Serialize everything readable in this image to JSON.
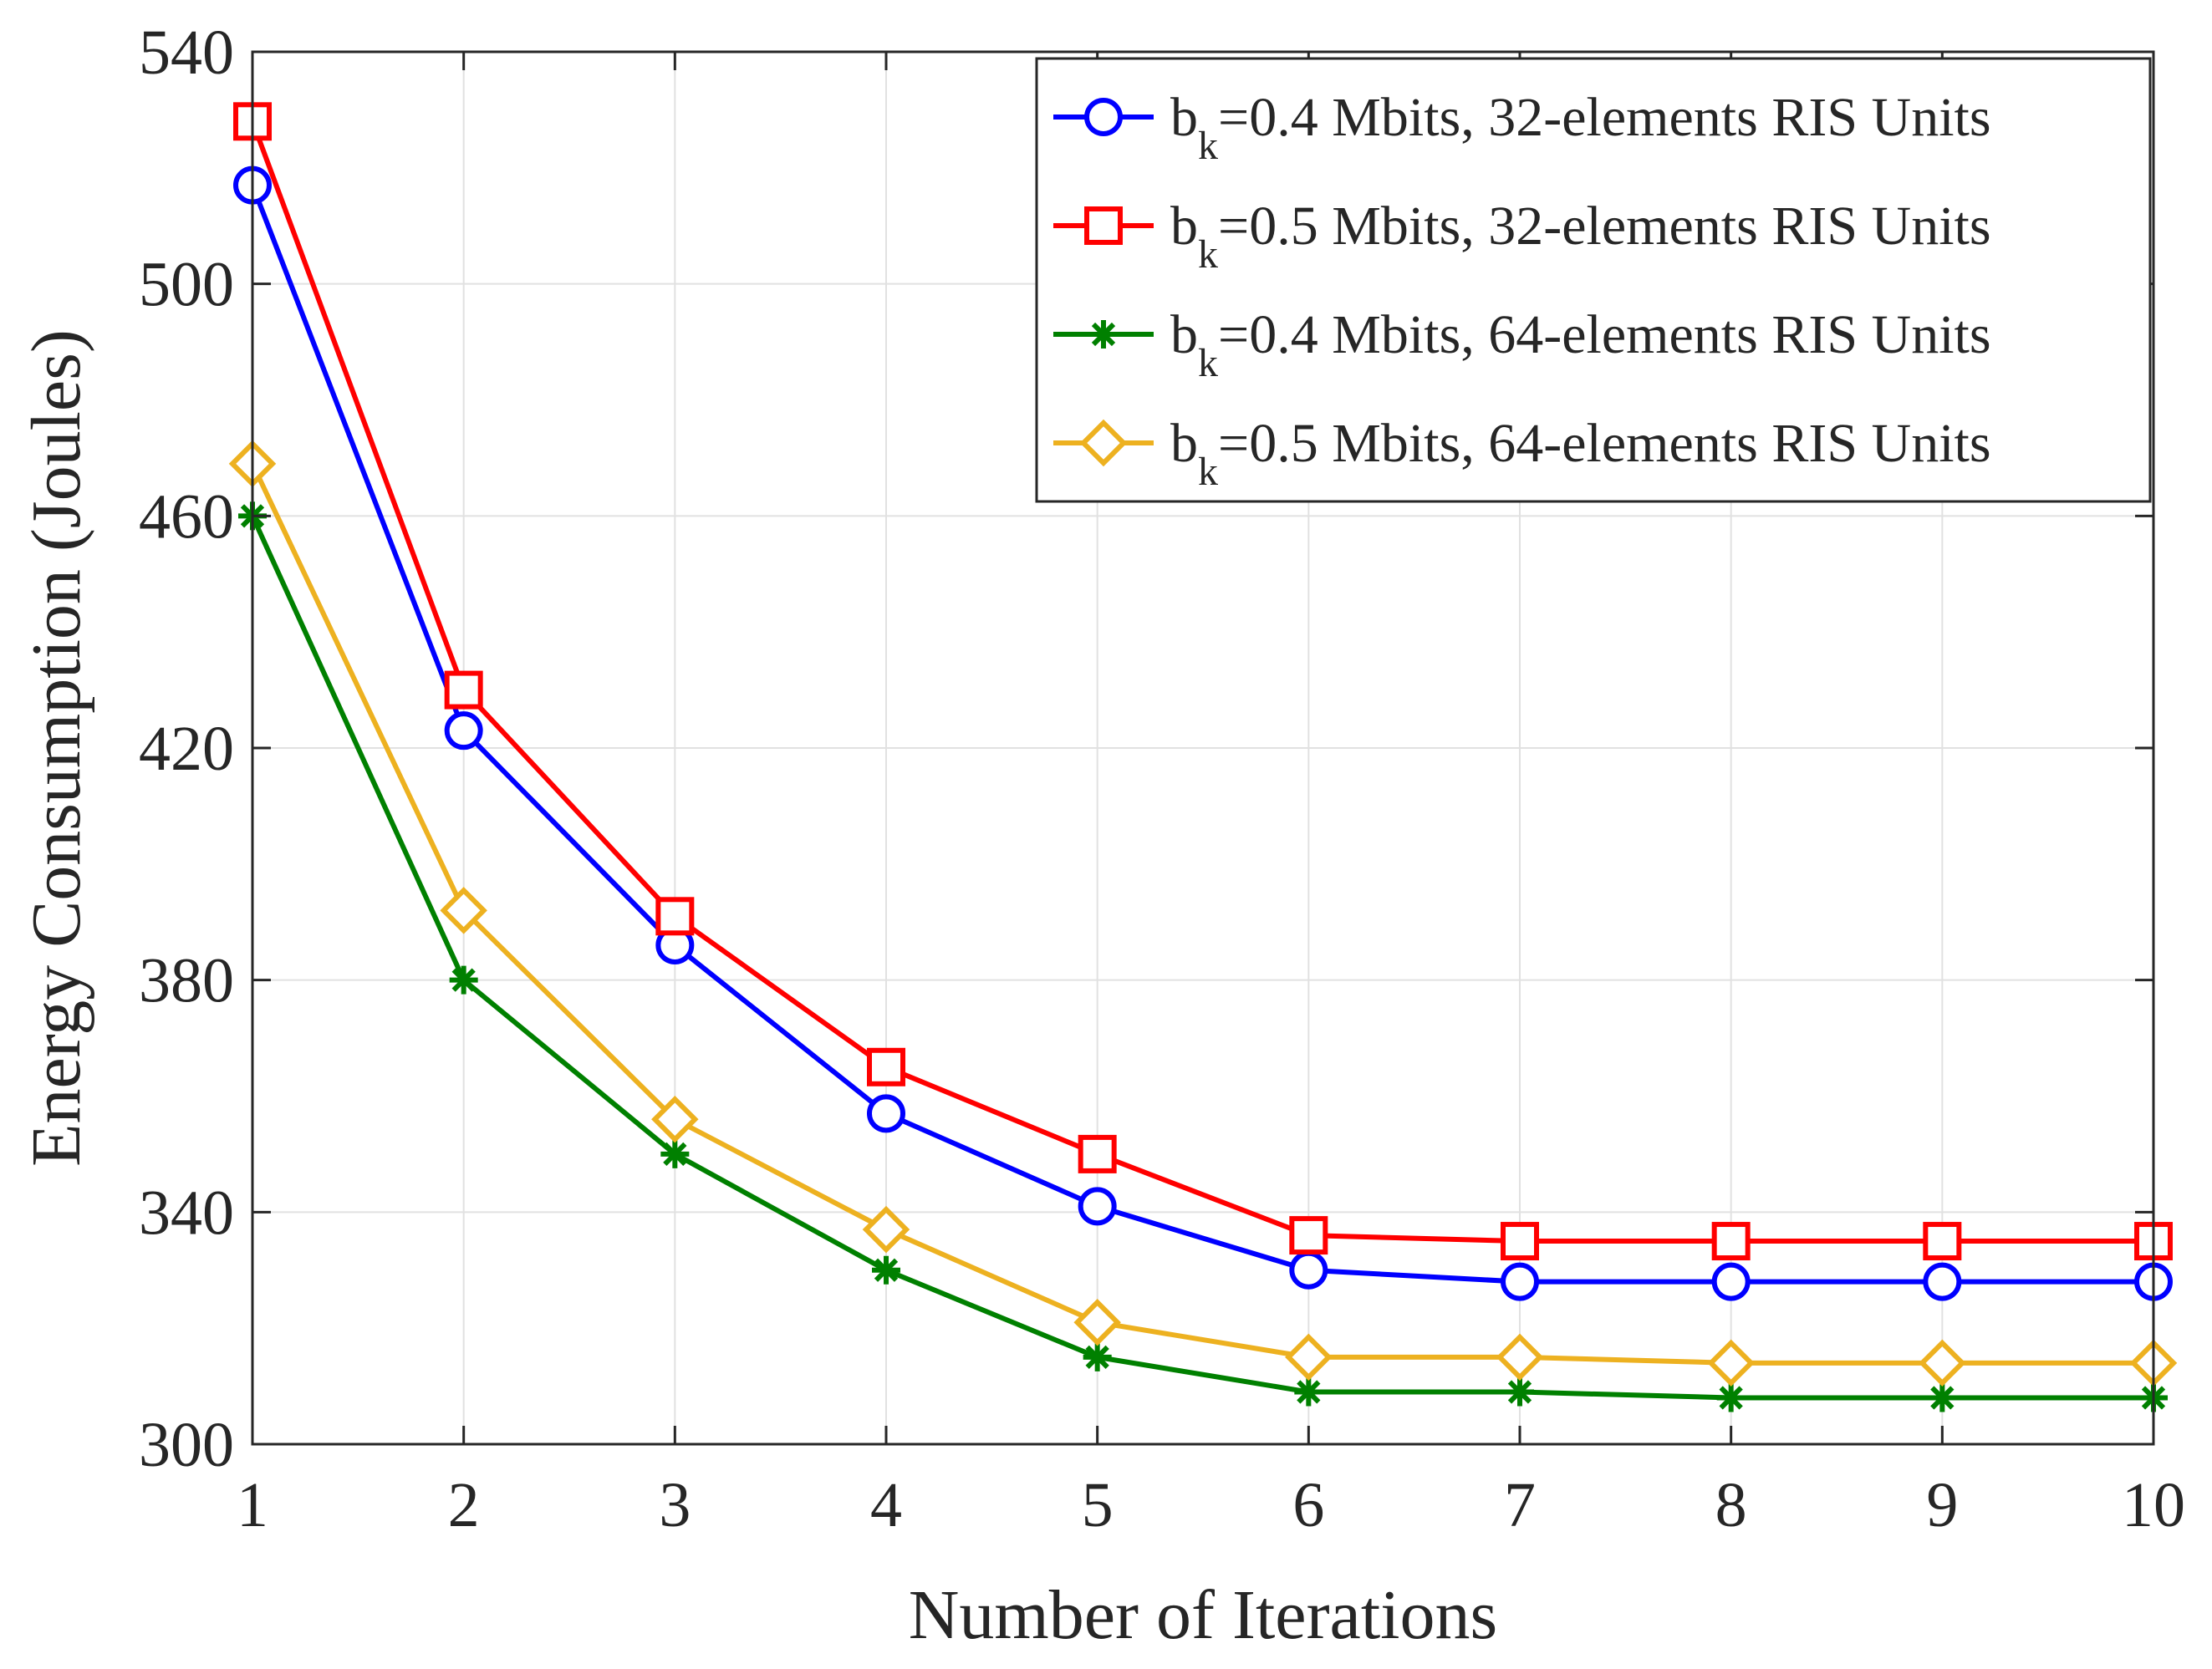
{
  "chart_data": {
    "type": "line",
    "title": "",
    "xlabel": "Number of Iterations",
    "ylabel": "Energy Consumption (Joules)",
    "xlim": [
      1,
      10
    ],
    "ylim": [
      300,
      540
    ],
    "xticks": [
      1,
      2,
      3,
      4,
      5,
      6,
      7,
      8,
      9,
      10
    ],
    "yticks": [
      300,
      340,
      380,
      420,
      460,
      500,
      540
    ],
    "grid": true,
    "legend_position": "top-right",
    "x": [
      1,
      2,
      3,
      4,
      5,
      6,
      7,
      8,
      9,
      10
    ],
    "series": [
      {
        "name": "b_k=0.4 Mbits, 32-elements RIS Units",
        "legend_prefix": "b",
        "legend_sub": "k",
        "legend_suffix": "=0.4 Mbits, 32-elements RIS Units",
        "color": "#0000ff",
        "marker": "circle",
        "values": [
          517,
          423,
          386,
          357,
          341,
          330,
          328,
          328,
          328,
          328
        ]
      },
      {
        "name": "b_k=0.5 Mbits, 32-elements RIS Units",
        "legend_prefix": "b",
        "legend_sub": "k",
        "legend_suffix": "=0.5 Mbits, 32-elements RIS Units",
        "color": "#ff0000",
        "marker": "square",
        "values": [
          528,
          430,
          391,
          365,
          350,
          336,
          335,
          335,
          335,
          335
        ]
      },
      {
        "name": "b_k=0.4 Mbits, 64-elements RIS Units",
        "legend_prefix": "b",
        "legend_sub": "k",
        "legend_suffix": "=0.4 Mbits, 64-elements RIS Units",
        "color": "#008000",
        "marker": "asterisk",
        "values": [
          460,
          380,
          350,
          330,
          315,
          309,
          309,
          308,
          308,
          308
        ]
      },
      {
        "name": "b_k=0.5 Mbits, 64-elements RIS Units",
        "legend_prefix": "b",
        "legend_sub": "k",
        "legend_suffix": "=0.5 Mbits, 64-elements RIS Units",
        "color": "#edb120",
        "marker": "diamond",
        "values": [
          469,
          392,
          356,
          337,
          321,
          315,
          315,
          314,
          314,
          314
        ]
      }
    ]
  }
}
